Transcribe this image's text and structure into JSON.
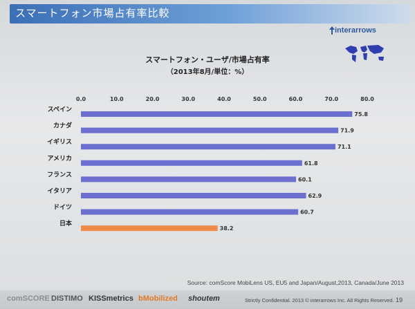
{
  "slide": {
    "title": "スマートフォン市場占有率比較",
    "logo_text": "interarrows",
    "source": "Source: comScore MobiLens US, EU5 and Japan/August,2013, Canada/June 2013",
    "confidential": "Strictly Confidential. 2013 © interarrows Inc. All Rights Reserved.",
    "page_number": "19",
    "footer_brands": [
      "comSCORE",
      "DISTIMO",
      "KISSmetrics",
      "bMobilized",
      "shoutem"
    ]
  },
  "chart_data": {
    "type": "bar",
    "orientation": "horizontal",
    "title": "スマートフォン・ユーザ/市場占有率",
    "subtitle": "（2013年8月/単位：%）",
    "categories": [
      "スペイン",
      "カナダ",
      "イギリス",
      "アメリカ",
      "フランス",
      "イタリア",
      "ドイツ",
      "日本"
    ],
    "values": [
      75.8,
      71.9,
      71.1,
      61.8,
      60.1,
      62.9,
      60.7,
      38.2
    ],
    "value_labels": [
      "75.8",
      "71.9",
      "71.1",
      "61.8",
      "60.1",
      "62.9",
      "60.7",
      "38.2"
    ],
    "xlim": [
      0,
      80
    ],
    "x_ticks": [
      "0.0",
      "10.0",
      "20.0",
      "30.0",
      "40.0",
      "50.0",
      "60.0",
      "70.0",
      "80.0"
    ],
    "axis_position": "top",
    "grid": false,
    "colors": {
      "default": "#6b6fd0",
      "highlight": "#f08a4b",
      "highlight_category": "日本"
    }
  }
}
